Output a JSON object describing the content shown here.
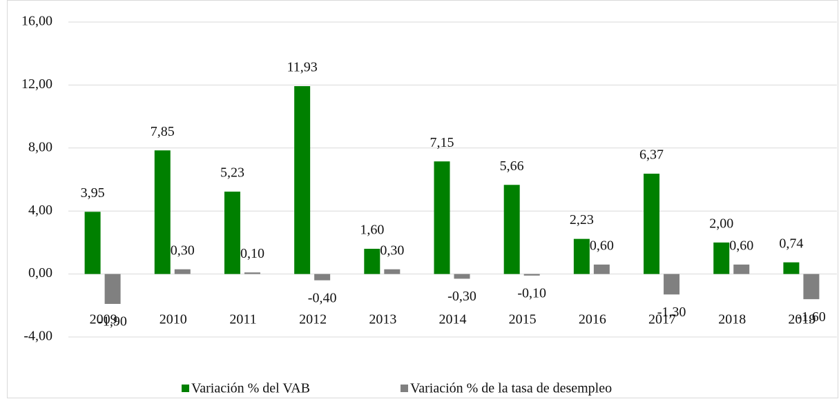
{
  "chart_data": {
    "type": "bar",
    "categories": [
      "2009",
      "2010",
      "2011",
      "2012",
      "2013",
      "2014",
      "2015",
      "2016",
      "2017",
      "2018",
      "2019"
    ],
    "series": [
      {
        "name": "Variación % del VAB",
        "color": "#008000",
        "values": [
          3.95,
          7.85,
          5.23,
          11.93,
          1.6,
          7.15,
          5.66,
          2.23,
          6.37,
          2.0,
          0.74
        ],
        "value_labels": [
          "3,95",
          "7,85",
          "5,23",
          "11,93",
          "1,60",
          "7,15",
          "5,66",
          "2,23",
          "6,37",
          "2,00",
          "0,74"
        ]
      },
      {
        "name": "Variación % de la tasa de desempleo",
        "color": "#808080",
        "values": [
          -1.9,
          0.3,
          0.1,
          -0.4,
          0.3,
          -0.3,
          -0.1,
          0.6,
          -1.3,
          0.6,
          -1.6
        ],
        "value_labels": [
          "-1,90",
          "0,30",
          "0,10",
          "-0,40",
          "0,30",
          "-0,30",
          "-0,10",
          "0,60",
          "-1,30",
          "0,60",
          "-1,60"
        ]
      }
    ],
    "ylim": [
      -4,
      16
    ],
    "yticks": [
      {
        "value": -4,
        "label": "-4,00"
      },
      {
        "value": 0,
        "label": "0,00"
      },
      {
        "value": 4,
        "label": "4,00"
      },
      {
        "value": 8,
        "label": "8,00"
      },
      {
        "value": 12,
        "label": "12,00"
      },
      {
        "value": 16,
        "label": "16,00"
      }
    ],
    "grid": true,
    "legend": "bottom"
  }
}
